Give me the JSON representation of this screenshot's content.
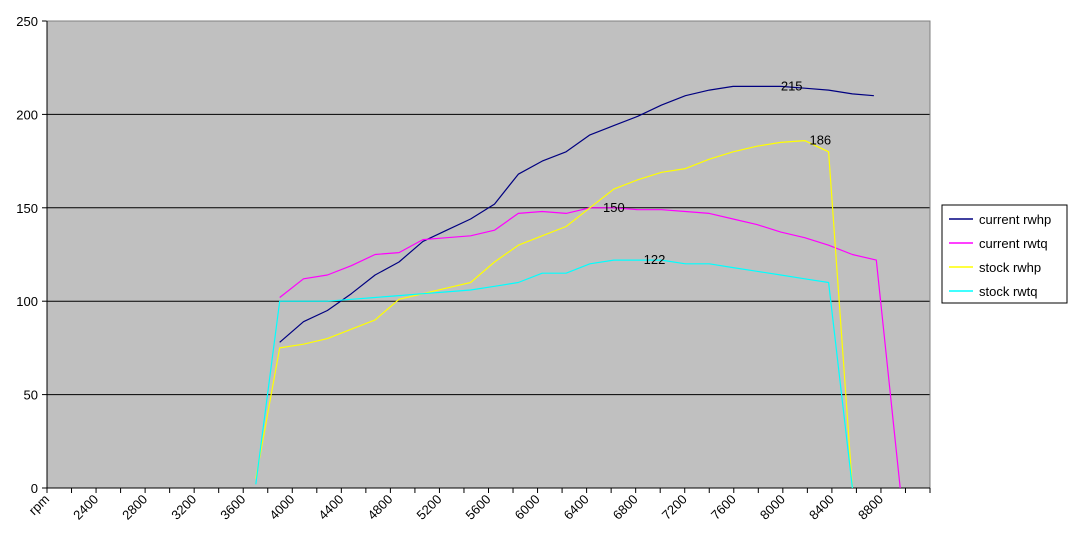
{
  "chart_data": {
    "type": "line",
    "ylim": [
      0,
      250
    ],
    "yticks": [
      0,
      50,
      100,
      150,
      200,
      250
    ],
    "xlim_rpm": [
      1850,
      9250
    ],
    "x_tick_labels": [
      "rpm",
      "2400",
      "2800",
      "3200",
      "3600",
      "4000",
      "4400",
      "4800",
      "5200",
      "5600",
      "6000",
      "6400",
      "6800",
      "7200",
      "7600",
      "8000",
      "8400",
      "8800"
    ],
    "grid": "horizontal",
    "plot_background": "#c0c0c0",
    "legend_position": "right",
    "series": [
      {
        "name": "current rwhp",
        "color": "#000080",
        "points": [
          [
            3800,
            78
          ],
          [
            4000,
            89
          ],
          [
            4200,
            95
          ],
          [
            4400,
            104
          ],
          [
            4600,
            114
          ],
          [
            4800,
            121
          ],
          [
            5000,
            132
          ],
          [
            5200,
            138
          ],
          [
            5400,
            144
          ],
          [
            5600,
            152
          ],
          [
            5800,
            168
          ],
          [
            6000,
            175
          ],
          [
            6200,
            180
          ],
          [
            6400,
            189
          ],
          [
            6600,
            194
          ],
          [
            6800,
            199
          ],
          [
            7000,
            205
          ],
          [
            7200,
            210
          ],
          [
            7400,
            213
          ],
          [
            7600,
            215
          ],
          [
            7800,
            215
          ],
          [
            8000,
            215
          ],
          [
            8200,
            214
          ],
          [
            8400,
            213
          ],
          [
            8600,
            211
          ],
          [
            8780,
            210
          ]
        ]
      },
      {
        "name": "current rwtq",
        "color": "#ff00ff",
        "points": [
          [
            3800,
            102
          ],
          [
            4000,
            112
          ],
          [
            4200,
            114
          ],
          [
            4400,
            119
          ],
          [
            4600,
            125
          ],
          [
            4800,
            126
          ],
          [
            5000,
            133
          ],
          [
            5200,
            134
          ],
          [
            5400,
            135
          ],
          [
            5600,
            138
          ],
          [
            5800,
            147
          ],
          [
            6000,
            148
          ],
          [
            6200,
            147
          ],
          [
            6400,
            150
          ],
          [
            6600,
            150
          ],
          [
            6800,
            149
          ],
          [
            7000,
            149
          ],
          [
            7200,
            148
          ],
          [
            7400,
            147
          ],
          [
            7600,
            144
          ],
          [
            7800,
            141
          ],
          [
            8000,
            137
          ],
          [
            8200,
            134
          ],
          [
            8400,
            130
          ],
          [
            8600,
            125
          ],
          [
            8800,
            122
          ],
          [
            9000,
            0
          ]
        ]
      },
      {
        "name": "stock rwhp",
        "color": "#ffff00",
        "points": [
          [
            3600,
            5
          ],
          [
            3800,
            75
          ],
          [
            4000,
            77
          ],
          [
            4200,
            80
          ],
          [
            4400,
            85
          ],
          [
            4600,
            90
          ],
          [
            4800,
            101
          ],
          [
            5000,
            104
          ],
          [
            5200,
            107
          ],
          [
            5400,
            110
          ],
          [
            5600,
            121
          ],
          [
            5800,
            130
          ],
          [
            6000,
            135
          ],
          [
            6200,
            140
          ],
          [
            6400,
            150
          ],
          [
            6600,
            160
          ],
          [
            6800,
            165
          ],
          [
            7000,
            169
          ],
          [
            7200,
            171
          ],
          [
            7400,
            176
          ],
          [
            7600,
            180
          ],
          [
            7800,
            183
          ],
          [
            8000,
            185
          ],
          [
            8200,
            186
          ],
          [
            8400,
            180
          ],
          [
            8600,
            0
          ]
        ]
      },
      {
        "name": "stock rwtq",
        "color": "#00ffff",
        "points": [
          [
            3600,
            2
          ],
          [
            3800,
            100
          ],
          [
            4000,
            100
          ],
          [
            4200,
            100
          ],
          [
            4400,
            101
          ],
          [
            4600,
            102
          ],
          [
            4800,
            103
          ],
          [
            5000,
            104
          ],
          [
            5200,
            105
          ],
          [
            5400,
            106
          ],
          [
            5600,
            108
          ],
          [
            5800,
            110
          ],
          [
            6000,
            115
          ],
          [
            6200,
            115
          ],
          [
            6400,
            120
          ],
          [
            6600,
            122
          ],
          [
            6800,
            122
          ],
          [
            7000,
            122
          ],
          [
            7200,
            120
          ],
          [
            7400,
            120
          ],
          [
            7600,
            118
          ],
          [
            7800,
            116
          ],
          [
            8000,
            114
          ],
          [
            8200,
            112
          ],
          [
            8400,
            110
          ],
          [
            8600,
            0
          ]
        ]
      }
    ],
    "annotations": [
      {
        "text": "215",
        "x": 8000,
        "y": 215
      },
      {
        "text": "186",
        "x": 8240,
        "y": 186
      },
      {
        "text": "150",
        "x": 6510,
        "y": 150
      },
      {
        "text": "122",
        "x": 6850,
        "y": 122
      }
    ]
  }
}
